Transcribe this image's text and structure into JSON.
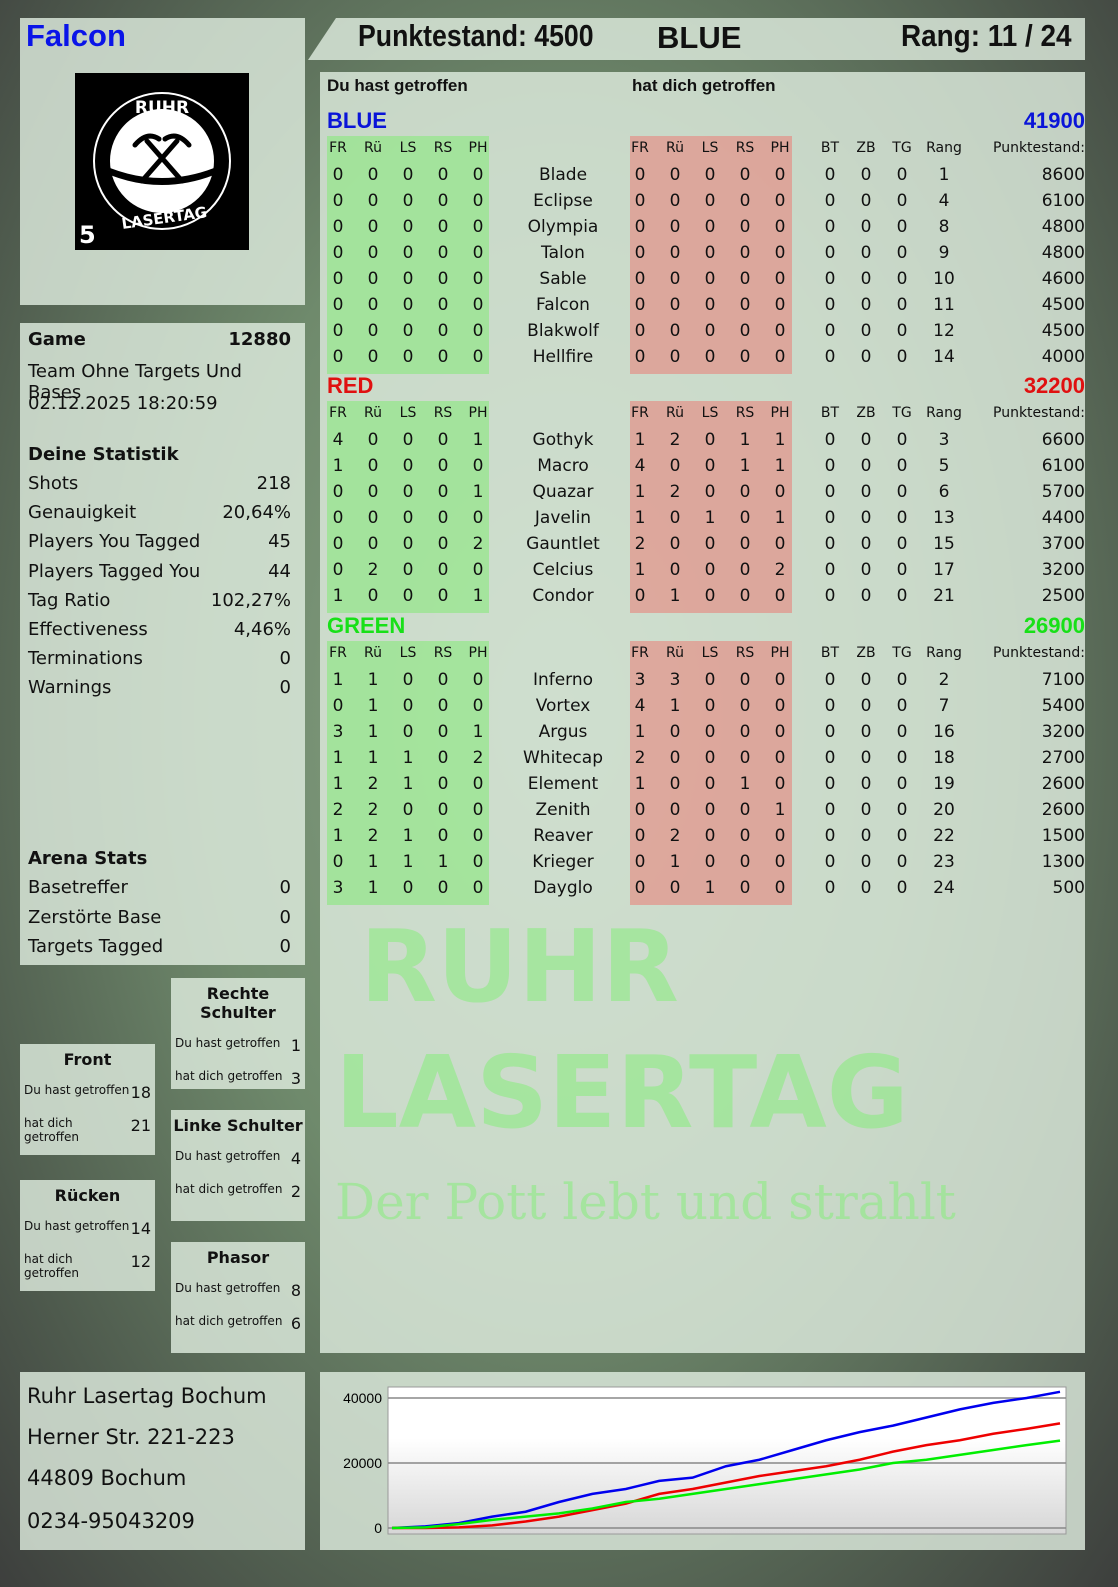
{
  "player": {
    "name": "Falcon",
    "score_label": "Punktestand: 4500",
    "team": "BLUE",
    "rank_label": "Rang: 11 / 24"
  },
  "logo": {
    "top": "RUHR",
    "bottom": "LASERTAG",
    "number": "5"
  },
  "game": {
    "label": "Game",
    "id": "12880",
    "mode": "Team Ohne Targets Und Bases",
    "datetime": "02.12.2025 18:20:59"
  },
  "stats": {
    "title": "Deine Statistik",
    "rows": [
      {
        "label": "Shots",
        "value": "218"
      },
      {
        "label": "Genauigkeit",
        "value": "20,64%"
      },
      {
        "label": "Players You Tagged",
        "value": "45"
      },
      {
        "label": "Players Tagged You",
        "value": "44"
      },
      {
        "label": "Tag Ratio",
        "value": "102,27%"
      },
      {
        "label": "Effectiveness",
        "value": "4,46%"
      },
      {
        "label": "Terminations",
        "value": "0"
      },
      {
        "label": "Warnings",
        "value": "0"
      }
    ]
  },
  "arena": {
    "title": "Arena Stats",
    "rows": [
      {
        "label": "Basetreffer",
        "value": "0"
      },
      {
        "label": "Zerstörte Base",
        "value": "0"
      },
      {
        "label": "Targets Tagged",
        "value": "0"
      }
    ]
  },
  "zones": {
    "rechte_schulter": {
      "title": "Rechte Schulter",
      "hit_label": "Du hast getroffen",
      "hit": "1",
      "got_label": "hat dich getroffen",
      "got": "3"
    },
    "front": {
      "title": "Front",
      "hit_label": "Du hast getroffen",
      "hit": "18",
      "got_label": "hat dich getroffen",
      "got": "21"
    },
    "linke_schulter": {
      "title": "Linke Schulter",
      "hit_label": "Du hast getroffen",
      "hit": "4",
      "got_label": "hat dich getroffen",
      "got": "2"
    },
    "ruecken": {
      "title": "Rücken",
      "hit_label": "Du hast getroffen",
      "hit": "14",
      "got_label": "hat dich getroffen",
      "got": "12"
    },
    "phasor": {
      "title": "Phasor",
      "hit_label": "Du hast getroffen",
      "hit": "8",
      "got_label": "hat dich getroffen",
      "got": "6"
    }
  },
  "address": {
    "line1": "Ruhr Lasertag Bochum",
    "line2": "Herner Str. 221-223",
    "line3": "44809 Bochum",
    "phone": "0234-95043209"
  },
  "watermark": {
    "line1": "RUHR",
    "line2": "LASERTAG",
    "slogan": "Der Pott lebt und strahlt"
  },
  "table": {
    "you_hit": "Du hast getroffen",
    "hit_you": "hat dich getroffen",
    "hit_cols": [
      "FR",
      "Rü",
      "LS",
      "RS",
      "PH"
    ],
    "extra_cols": [
      "BT",
      "ZB",
      "TG",
      "Rang",
      "Punktestand:"
    ],
    "teams": [
      {
        "name": "BLUE",
        "total": "41900",
        "color": "#0a14d8",
        "players": [
          {
            "name": "Blade",
            "hit": [
              0,
              0,
              0,
              0,
              0
            ],
            "got": [
              0,
              0,
              0,
              0,
              0
            ],
            "extra": [
              0,
              0,
              0,
              1,
              8600
            ]
          },
          {
            "name": "Eclipse",
            "hit": [
              0,
              0,
              0,
              0,
              0
            ],
            "got": [
              0,
              0,
              0,
              0,
              0
            ],
            "extra": [
              0,
              0,
              0,
              4,
              6100
            ]
          },
          {
            "name": "Olympia",
            "hit": [
              0,
              0,
              0,
              0,
              0
            ],
            "got": [
              0,
              0,
              0,
              0,
              0
            ],
            "extra": [
              0,
              0,
              0,
              8,
              4800
            ]
          },
          {
            "name": "Talon",
            "hit": [
              0,
              0,
              0,
              0,
              0
            ],
            "got": [
              0,
              0,
              0,
              0,
              0
            ],
            "extra": [
              0,
              0,
              0,
              9,
              4800
            ]
          },
          {
            "name": "Sable",
            "hit": [
              0,
              0,
              0,
              0,
              0
            ],
            "got": [
              0,
              0,
              0,
              0,
              0
            ],
            "extra": [
              0,
              0,
              0,
              10,
              4600
            ]
          },
          {
            "name": "Falcon",
            "hit": [
              0,
              0,
              0,
              0,
              0
            ],
            "got": [
              0,
              0,
              0,
              0,
              0
            ],
            "extra": [
              0,
              0,
              0,
              11,
              4500
            ]
          },
          {
            "name": "Blakwolf",
            "hit": [
              0,
              0,
              0,
              0,
              0
            ],
            "got": [
              0,
              0,
              0,
              0,
              0
            ],
            "extra": [
              0,
              0,
              0,
              12,
              4500
            ]
          },
          {
            "name": "Hellfire",
            "hit": [
              0,
              0,
              0,
              0,
              0
            ],
            "got": [
              0,
              0,
              0,
              0,
              0
            ],
            "extra": [
              0,
              0,
              0,
              14,
              4000
            ]
          }
        ]
      },
      {
        "name": "RED",
        "total": "32200",
        "color": "#e01010",
        "players": [
          {
            "name": "Gothyk",
            "hit": [
              4,
              0,
              0,
              0,
              1
            ],
            "got": [
              1,
              2,
              0,
              1,
              1
            ],
            "extra": [
              0,
              0,
              0,
              3,
              6600
            ]
          },
          {
            "name": "Macro",
            "hit": [
              1,
              0,
              0,
              0,
              0
            ],
            "got": [
              4,
              0,
              0,
              1,
              1
            ],
            "extra": [
              0,
              0,
              0,
              5,
              6100
            ]
          },
          {
            "name": "Quazar",
            "hit": [
              0,
              0,
              0,
              0,
              1
            ],
            "got": [
              1,
              2,
              0,
              0,
              0
            ],
            "extra": [
              0,
              0,
              0,
              6,
              5700
            ]
          },
          {
            "name": "Javelin",
            "hit": [
              0,
              0,
              0,
              0,
              0
            ],
            "got": [
              1,
              0,
              1,
              0,
              1
            ],
            "extra": [
              0,
              0,
              0,
              13,
              4400
            ]
          },
          {
            "name": "Gauntlet",
            "hit": [
              0,
              0,
              0,
              0,
              2
            ],
            "got": [
              2,
              0,
              0,
              0,
              0
            ],
            "extra": [
              0,
              0,
              0,
              15,
              3700
            ]
          },
          {
            "name": "Celcius",
            "hit": [
              0,
              2,
              0,
              0,
              0
            ],
            "got": [
              1,
              0,
              0,
              0,
              2
            ],
            "extra": [
              0,
              0,
              0,
              17,
              3200
            ]
          },
          {
            "name": "Condor",
            "hit": [
              1,
              0,
              0,
              0,
              1
            ],
            "got": [
              0,
              1,
              0,
              0,
              0
            ],
            "extra": [
              0,
              0,
              0,
              21,
              2500
            ]
          }
        ]
      },
      {
        "name": "GREEN",
        "total": "26900",
        "color": "#18e018",
        "players": [
          {
            "name": "Inferno",
            "hit": [
              1,
              1,
              0,
              0,
              0
            ],
            "got": [
              3,
              3,
              0,
              0,
              0
            ],
            "extra": [
              0,
              0,
              0,
              2,
              7100
            ]
          },
          {
            "name": "Vortex",
            "hit": [
              0,
              1,
              0,
              0,
              0
            ],
            "got": [
              4,
              1,
              0,
              0,
              0
            ],
            "extra": [
              0,
              0,
              0,
              7,
              5400
            ]
          },
          {
            "name": "Argus",
            "hit": [
              3,
              1,
              0,
              0,
              1
            ],
            "got": [
              1,
              0,
              0,
              0,
              0
            ],
            "extra": [
              0,
              0,
              0,
              16,
              3200
            ]
          },
          {
            "name": "Whitecap",
            "hit": [
              1,
              1,
              1,
              0,
              2
            ],
            "got": [
              2,
              0,
              0,
              0,
              0
            ],
            "extra": [
              0,
              0,
              0,
              18,
              2700
            ]
          },
          {
            "name": "Element",
            "hit": [
              1,
              2,
              1,
              0,
              0
            ],
            "got": [
              1,
              0,
              0,
              1,
              0
            ],
            "extra": [
              0,
              0,
              0,
              19,
              2600
            ]
          },
          {
            "name": "Zenith",
            "hit": [
              2,
              2,
              0,
              0,
              0
            ],
            "got": [
              0,
              0,
              0,
              0,
              1
            ],
            "extra": [
              0,
              0,
              0,
              20,
              2600
            ]
          },
          {
            "name": "Reaver",
            "hit": [
              1,
              2,
              1,
              0,
              0
            ],
            "got": [
              0,
              2,
              0,
              0,
              0
            ],
            "extra": [
              0,
              0,
              0,
              22,
              1500
            ]
          },
          {
            "name": "Krieger",
            "hit": [
              0,
              1,
              1,
              1,
              0
            ],
            "got": [
              0,
              1,
              0,
              0,
              0
            ],
            "extra": [
              0,
              0,
              0,
              23,
              1300
            ]
          },
          {
            "name": "Dayglo",
            "hit": [
              3,
              1,
              0,
              0,
              0
            ],
            "got": [
              0,
              0,
              1,
              0,
              0
            ],
            "extra": [
              0,
              0,
              0,
              24,
              500
            ]
          }
        ]
      }
    ]
  },
  "chart_data": {
    "type": "line",
    "ylim": [
      0,
      43000
    ],
    "yticks": [
      "0",
      "20000",
      "40000"
    ],
    "grid": true,
    "x": [
      0,
      1,
      2,
      3,
      4,
      5,
      6,
      7,
      8,
      9,
      10,
      11,
      12,
      13,
      14,
      15,
      16,
      17,
      18,
      19,
      20
    ],
    "series": [
      {
        "color": "#0000ee",
        "values": [
          0,
          500,
          1500,
          3500,
          5000,
          8000,
          10500,
          12000,
          14500,
          15500,
          19000,
          21000,
          24000,
          27000,
          29500,
          31500,
          34000,
          36500,
          38500,
          40000,
          41900
        ]
      },
      {
        "color": "#ee0000",
        "values": [
          0,
          0,
          200,
          800,
          2000,
          3500,
          5500,
          7500,
          10500,
          12000,
          14000,
          16000,
          17500,
          19000,
          21000,
          23500,
          25500,
          27000,
          29000,
          30500,
          32200
        ]
      },
      {
        "color": "#00ee00",
        "values": [
          0,
          200,
          1200,
          2500,
          3500,
          4500,
          6000,
          8000,
          9000,
          10500,
          12000,
          13500,
          15000,
          16500,
          18000,
          20000,
          21000,
          22500,
          24000,
          25500,
          26900
        ]
      }
    ]
  }
}
